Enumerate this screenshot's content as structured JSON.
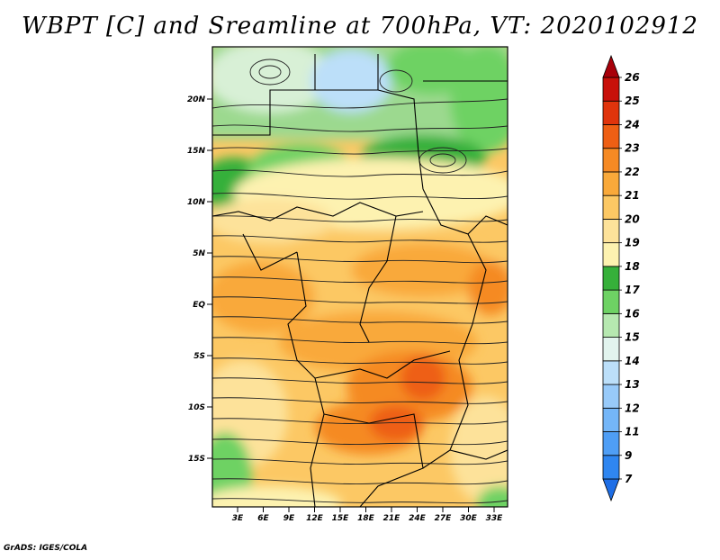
{
  "title": "WBPT [C] and Sreamline at 700hPa, VT: 2020102912",
  "credit": "GrADS: IGES/COLA",
  "map": {
    "lat_labels": [
      "20N",
      "15N",
      "10N",
      "5N",
      "EQ",
      "5S",
      "10S",
      "15S"
    ],
    "lon_labels": [
      "3E",
      "6E",
      "9E",
      "12E",
      "15E",
      "18E",
      "21E",
      "24E",
      "27E",
      "30E",
      "33E"
    ],
    "lon_range": [
      0,
      35
    ],
    "lat_range": [
      -20,
      25
    ]
  },
  "colorbar": {
    "labels": [
      "7",
      "9",
      "11",
      "12",
      "13",
      "14",
      "15",
      "16",
      "17",
      "18",
      "19",
      "20",
      "21",
      "22",
      "23",
      "24",
      "25",
      "26"
    ],
    "colors": [
      "#1e6ee6",
      "#2f86f0",
      "#4f9ef5",
      "#74b6f8",
      "#98caf9",
      "#bcdff9",
      "#e2f4ee",
      "#b6e8b0",
      "#6ed264",
      "#36b03a",
      "#fdf2b0",
      "#fde29a",
      "#fcc864",
      "#f9a93a",
      "#f58a24",
      "#ee5f14",
      "#e0340c",
      "#c8100a",
      "#a8000a"
    ]
  }
}
